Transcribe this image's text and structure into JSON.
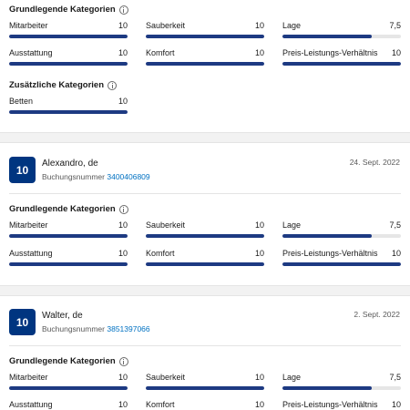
{
  "top_block": {
    "basic_title": "Grundlegende Kategorien",
    "metrics": [
      {
        "label": "Mitarbeiter",
        "value": "10",
        "fill": 1.0
      },
      {
        "label": "Sauberkeit",
        "value": "10",
        "fill": 1.0
      },
      {
        "label": "Lage",
        "value": "7,5",
        "fill": 0.75
      },
      {
        "label": "Ausstattung",
        "value": "10",
        "fill": 1.0
      },
      {
        "label": "Komfort",
        "value": "10",
        "fill": 1.0
      },
      {
        "label": "Preis-Leistungs-Verhältnis",
        "value": "10",
        "fill": 1.0
      }
    ],
    "extra_title": "Zusätzliche Kategorien",
    "extra_metrics": [
      {
        "label": "Betten",
        "value": "10",
        "fill": 1.0
      }
    ]
  },
  "reviews": [
    {
      "score": "10",
      "name": "Alexandro, de",
      "booking_label": "Buchungsnummer",
      "booking_number": "3400406809",
      "date": "24. Sept. 2022",
      "basic_title": "Grundlegende Kategorien",
      "metrics": [
        {
          "label": "Mitarbeiter",
          "value": "10",
          "fill": 1.0
        },
        {
          "label": "Sauberkeit",
          "value": "10",
          "fill": 1.0
        },
        {
          "label": "Lage",
          "value": "7,5",
          "fill": 0.75
        },
        {
          "label": "Ausstattung",
          "value": "10",
          "fill": 1.0
        },
        {
          "label": "Komfort",
          "value": "10",
          "fill": 1.0
        },
        {
          "label": "Preis-Leistungs-Verhältnis",
          "value": "10",
          "fill": 1.0
        }
      ]
    },
    {
      "score": "10",
      "name": "Walter, de",
      "booking_label": "Buchungsnummer",
      "booking_number": "3851397066",
      "date": "2. Sept. 2022",
      "basic_title": "Grundlegende Kategorien",
      "metrics": [
        {
          "label": "Mitarbeiter",
          "value": "10",
          "fill": 1.0
        },
        {
          "label": "Sauberkeit",
          "value": "10",
          "fill": 1.0
        },
        {
          "label": "Lage",
          "value": "7,5",
          "fill": 0.75
        },
        {
          "label": "Ausstattung",
          "value": "10",
          "fill": 1.0
        },
        {
          "label": "Komfort",
          "value": "10",
          "fill": 1.0
        },
        {
          "label": "Preis-Leistungs-Verhältnis",
          "value": "10",
          "fill": 1.0
        }
      ]
    }
  ]
}
